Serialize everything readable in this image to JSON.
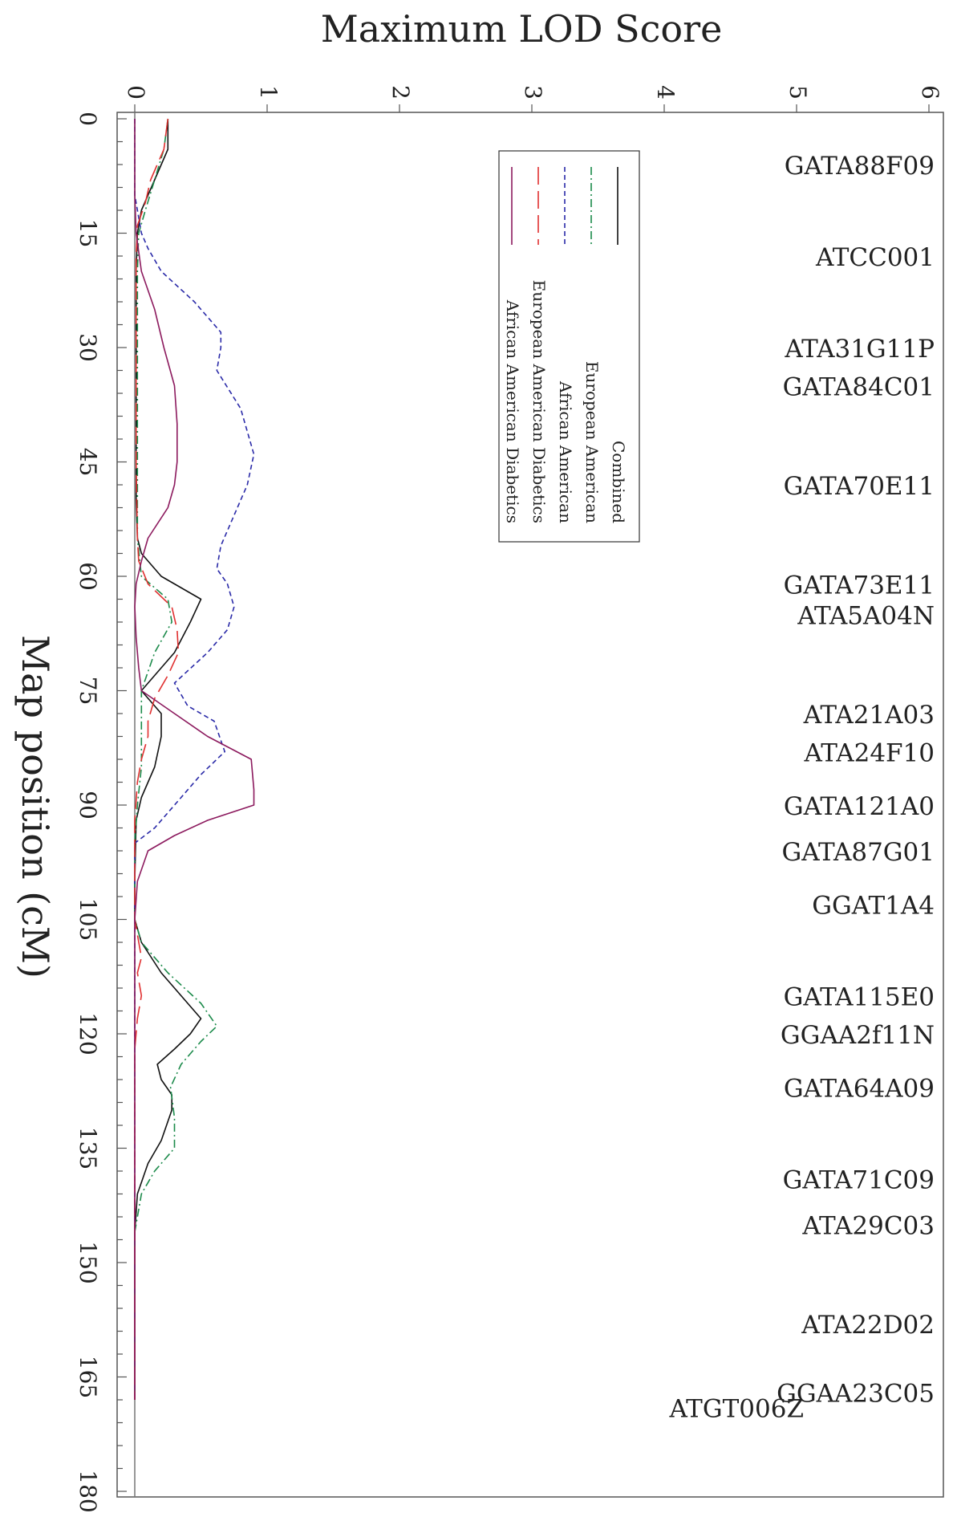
{
  "chart_data": {
    "type": "line",
    "orientation": "rotated-90",
    "title": "Maximum LOD Score",
    "xlabel": "Map position (cM)",
    "xlim": [
      0,
      180
    ],
    "ylim": [
      0,
      6
    ],
    "x_ticks": [
      "0",
      "15",
      "30",
      "45",
      "60",
      "75",
      "90",
      "105",
      "120",
      "135",
      "150",
      "165",
      "180"
    ],
    "y_ticks": [
      "0",
      "1",
      "2",
      "3",
      "4",
      "5",
      "6"
    ],
    "legend_position": "upper-right",
    "markers": [
      {
        "name": "GATA88F09",
        "pos": 6
      },
      {
        "name": "ATCC001",
        "pos": 18
      },
      {
        "name": "ATA31G11P",
        "pos": 30
      },
      {
        "name": "GATA84C01",
        "pos": 35
      },
      {
        "name": "GATA70E11",
        "pos": 48
      },
      {
        "name": "GATA73E11",
        "pos": 61
      },
      {
        "name": "ATA5A04N",
        "pos": 65
      },
      {
        "name": "ATA21A03",
        "pos": 78
      },
      {
        "name": "ATA24F10",
        "pos": 83
      },
      {
        "name": "GATA121A0",
        "pos": 90
      },
      {
        "name": "GATA87G01",
        "pos": 96
      },
      {
        "name": "GGAT1A4",
        "pos": 103
      },
      {
        "name": "GATA115E0",
        "pos": 115
      },
      {
        "name": "GGAA2f11N",
        "pos": 120
      },
      {
        "name": "GATA64A09",
        "pos": 127
      },
      {
        "name": "GATA71C09",
        "pos": 139
      },
      {
        "name": "ATA29C03",
        "pos": 145
      },
      {
        "name": "ATA22D02",
        "pos": 158
      },
      {
        "name": "GGAA23C05",
        "pos": 167
      },
      {
        "name": "ATGT006Z",
        "pos": 169,
        "offset": true
      }
    ],
    "series": [
      {
        "name": "Combined",
        "color": "#111111",
        "dash": "",
        "x": [
          0,
          4,
          8,
          12,
          15,
          20,
          30,
          40,
          50,
          55,
          57,
          60,
          63,
          66,
          70,
          73,
          75,
          78,
          81,
          85,
          89,
          92,
          100,
          105,
          108,
          112,
          116,
          118,
          120,
          122,
          124,
          126,
          128,
          130,
          134,
          137,
          141,
          146,
          155,
          168
        ],
        "y": [
          0.25,
          0.25,
          0.15,
          0.05,
          0.02,
          0.01,
          0.01,
          0.01,
          0.01,
          0.02,
          0.05,
          0.2,
          0.5,
          0.42,
          0.3,
          0.15,
          0.05,
          0.2,
          0.2,
          0.15,
          0.05,
          0.01,
          0.0,
          0.0,
          0.05,
          0.2,
          0.4,
          0.5,
          0.42,
          0.3,
          0.17,
          0.2,
          0.28,
          0.28,
          0.2,
          0.1,
          0.02,
          0.0,
          0.0,
          0.0
        ]
      },
      {
        "name": "European American",
        "color": "#1b8a4a",
        "dash": "10,4,2,4",
        "x": [
          0,
          4,
          8,
          12,
          15,
          20,
          30,
          40,
          50,
          55,
          60,
          63,
          66,
          70,
          75,
          80,
          85,
          90,
          95,
          105,
          108,
          112,
          116,
          119,
          121,
          124,
          127,
          131,
          135,
          138,
          141,
          146,
          155,
          168
        ],
        "y": [
          0.25,
          0.22,
          0.15,
          0.08,
          0.03,
          0.02,
          0.02,
          0.02,
          0.02,
          0.02,
          0.05,
          0.25,
          0.28,
          0.15,
          0.05,
          0.05,
          0.05,
          0.02,
          0.0,
          0.0,
          0.05,
          0.25,
          0.5,
          0.62,
          0.5,
          0.35,
          0.27,
          0.3,
          0.3,
          0.15,
          0.05,
          0.0,
          0.0,
          0.0
        ]
      },
      {
        "name": "African American",
        "color": "#2a2aa8",
        "dash": "6,4",
        "x": [
          0,
          10,
          15,
          17,
          20,
          24,
          28,
          30,
          33,
          38,
          44,
          48,
          52,
          56,
          59,
          61,
          64,
          67,
          70,
          74,
          77,
          79,
          83,
          86,
          89,
          93,
          95,
          100,
          110,
          120,
          130,
          140,
          150,
          168
        ],
        "y": [
          0.0,
          0.0,
          0.05,
          0.1,
          0.2,
          0.45,
          0.65,
          0.65,
          0.62,
          0.8,
          0.9,
          0.85,
          0.75,
          0.65,
          0.62,
          0.7,
          0.75,
          0.7,
          0.55,
          0.3,
          0.4,
          0.6,
          0.68,
          0.5,
          0.35,
          0.15,
          0.0,
          0.0,
          0.0,
          0.0,
          0.0,
          0.0,
          0.0,
          0.0
        ]
      },
      {
        "name": "European American Diabetics",
        "color": "#e03030",
        "dash": "22,8",
        "x": [
          0,
          4,
          8,
          11,
          14,
          18,
          30,
          45,
          55,
          58,
          61,
          64,
          67,
          70,
          73,
          76,
          79,
          81,
          84,
          87,
          92,
          105,
          110,
          112,
          115,
          118,
          122,
          130,
          145,
          168
        ],
        "y": [
          0.25,
          0.22,
          0.12,
          0.08,
          0.02,
          0.01,
          0.01,
          0.01,
          0.02,
          0.03,
          0.1,
          0.28,
          0.32,
          0.33,
          0.25,
          0.15,
          0.1,
          0.1,
          0.05,
          0.02,
          0.0,
          0.0,
          0.05,
          0.02,
          0.05,
          0.02,
          0.0,
          0.0,
          0.0,
          0.0
        ]
      },
      {
        "name": "African American Diabetics",
        "color": "#8c1a5e",
        "dash": "",
        "x": [
          0,
          10,
          15,
          20,
          25,
          30,
          35,
          40,
          45,
          48,
          51,
          55,
          58,
          61,
          64,
          68,
          72,
          75,
          78,
          81,
          84,
          88,
          90,
          92,
          94,
          96,
          100,
          105,
          110,
          120,
          130,
          140,
          168
        ],
        "y": [
          0.0,
          0.0,
          0.01,
          0.05,
          0.15,
          0.22,
          0.3,
          0.32,
          0.32,
          0.3,
          0.25,
          0.1,
          0.05,
          0.01,
          0.0,
          0.01,
          0.03,
          0.05,
          0.3,
          0.55,
          0.88,
          0.9,
          0.9,
          0.55,
          0.3,
          0.1,
          0.02,
          0.0,
          0.0,
          0.0,
          0.0,
          0.0,
          0.0
        ]
      }
    ]
  }
}
